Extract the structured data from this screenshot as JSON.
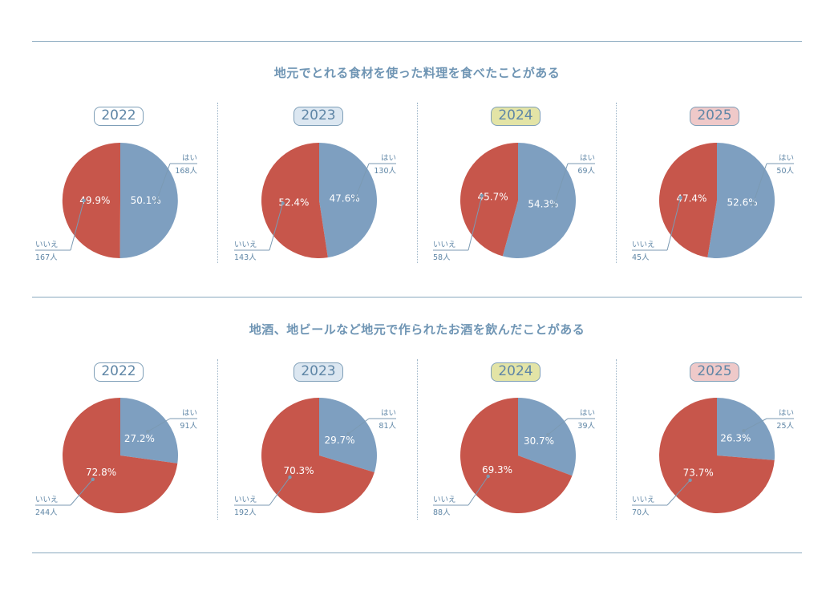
{
  "colors": {
    "yes": "#7e9fc0",
    "no": "#c7564b",
    "rule": "#8aa9bf",
    "text": "#5f86a6",
    "year_bg": [
      "#ffffff",
      "#dce7f1",
      "#e3e4a6",
      "#efc9c9"
    ]
  },
  "chart_data": [
    {
      "type": "pie",
      "title": "地元でとれる食材を使った料理を食べたことがある",
      "charts": [
        {
          "year": "2022",
          "yes_pct": 50.1,
          "no_pct": 49.9,
          "yes_pct_label": "50.1%",
          "no_pct_label": "49.9%",
          "yes_label": "はい",
          "yes_count": "168人",
          "no_label": "いいえ",
          "no_count": "167人"
        },
        {
          "year": "2023",
          "yes_pct": 47.6,
          "no_pct": 52.4,
          "yes_pct_label": "47.6%",
          "no_pct_label": "52.4%",
          "yes_label": "はい",
          "yes_count": "130人",
          "no_label": "いいえ",
          "no_count": "143人"
        },
        {
          "year": "2024",
          "yes_pct": 54.3,
          "no_pct": 45.7,
          "yes_pct_label": "54.3%",
          "no_pct_label": "45.7%",
          "yes_label": "はい",
          "yes_count": "69人",
          "no_label": "いいえ",
          "no_count": "58人"
        },
        {
          "year": "2025",
          "yes_pct": 52.6,
          "no_pct": 47.4,
          "yes_pct_label": "52.6%",
          "no_pct_label": "47.4%",
          "yes_label": "はい",
          "yes_count": "50人",
          "no_label": "いいえ",
          "no_count": "45人"
        }
      ]
    },
    {
      "type": "pie",
      "title": "地酒、地ビールなど地元で作られたお酒を飲んだことがある",
      "charts": [
        {
          "year": "2022",
          "yes_pct": 27.2,
          "no_pct": 72.8,
          "yes_pct_label": "27.2%",
          "no_pct_label": "72.8%",
          "yes_label": "はい",
          "yes_count": "91人",
          "no_label": "いいえ",
          "no_count": "244人"
        },
        {
          "year": "2023",
          "yes_pct": 29.7,
          "no_pct": 70.3,
          "yes_pct_label": "29.7%",
          "no_pct_label": "70.3%",
          "yes_label": "はい",
          "yes_count": "81人",
          "no_label": "いいえ",
          "no_count": "192人"
        },
        {
          "year": "2024",
          "yes_pct": 30.7,
          "no_pct": 69.3,
          "yes_pct_label": "30.7%",
          "no_pct_label": "69.3%",
          "yes_label": "はい",
          "yes_count": "39人",
          "no_label": "いいえ",
          "no_count": "88人"
        },
        {
          "year": "2025",
          "yes_pct": 26.3,
          "no_pct": 73.7,
          "yes_pct_label": "26.3%",
          "no_pct_label": "73.7%",
          "yes_label": "はい",
          "yes_count": "25人",
          "no_label": "いいえ",
          "no_count": "70人"
        }
      ]
    }
  ]
}
